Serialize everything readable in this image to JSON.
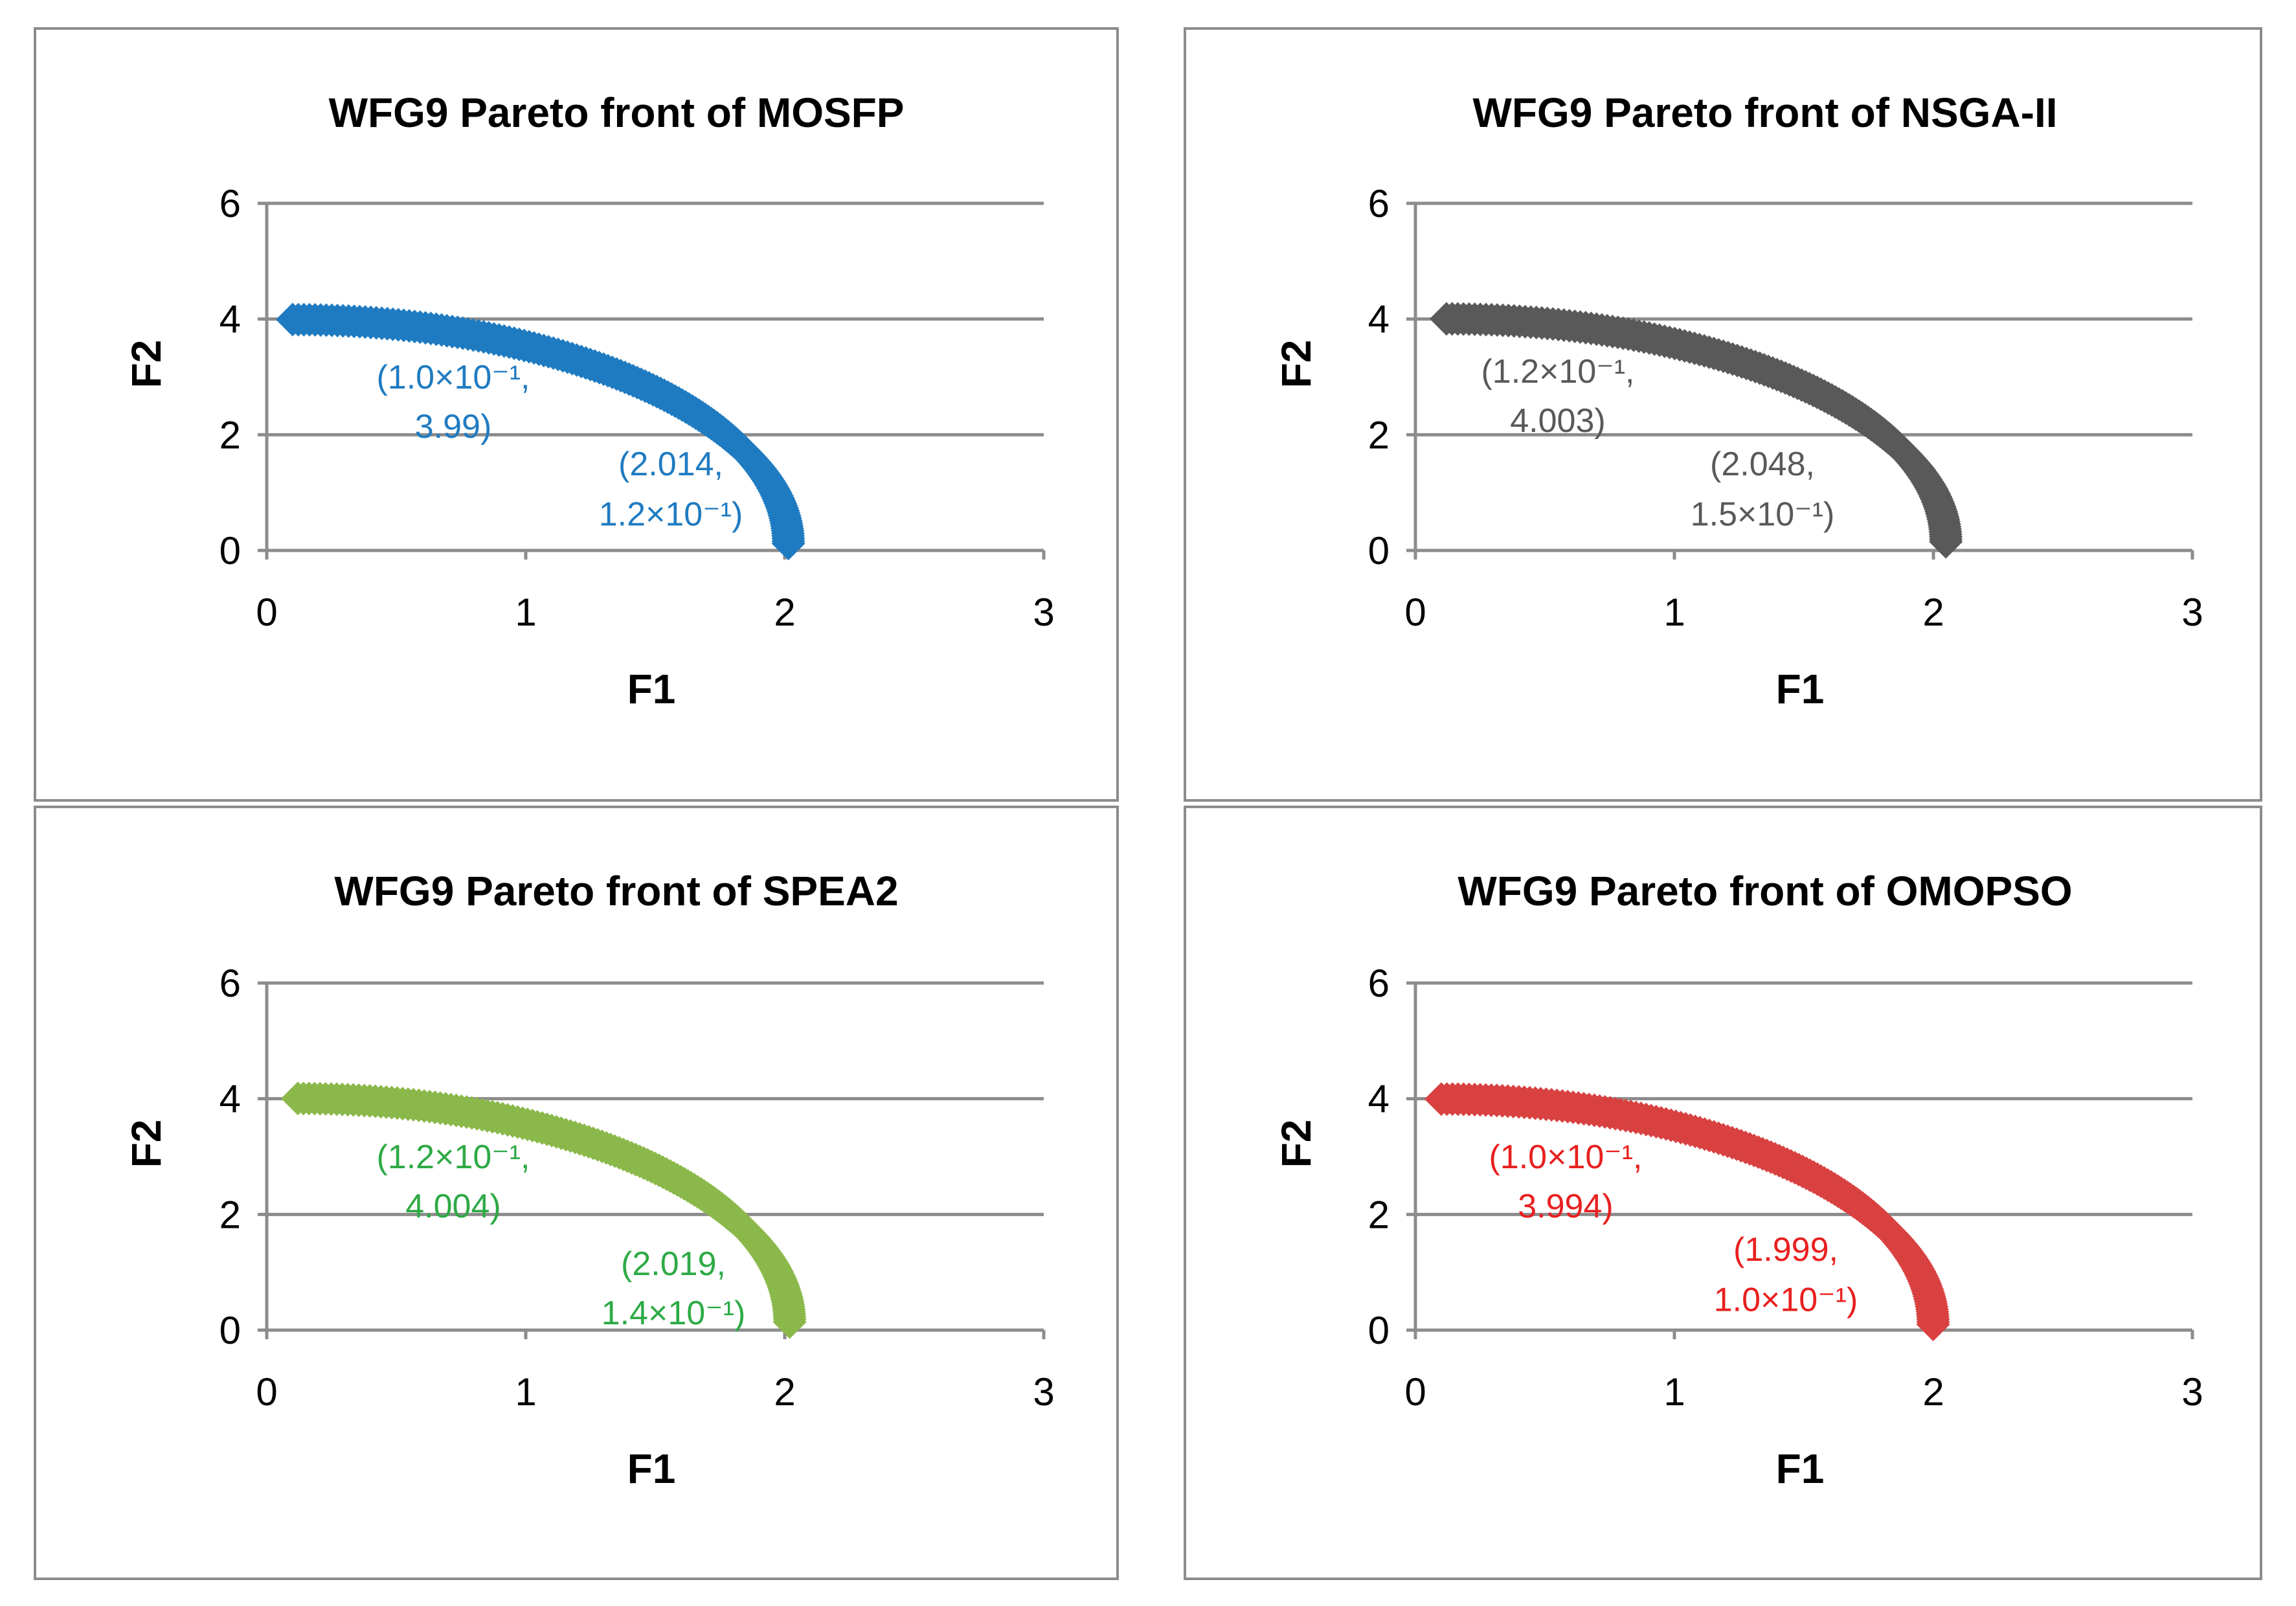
{
  "chart_data": [
    {
      "type": "scatter",
      "title": "WFG9 Pareto front of MOSFP",
      "xlabel": "F1",
      "ylabel": "F2",
      "xlim": [
        0,
        3
      ],
      "ylim": [
        0,
        6
      ],
      "xticks": [
        "0",
        "1",
        "2",
        "3"
      ],
      "yticks": [
        "0",
        "2",
        "4",
        "6"
      ],
      "grid": "horizontal",
      "color": "#1f7bc1",
      "front": {
        "f1_min": 0.1,
        "f1_max": 2.014,
        "f2_max": 3.99,
        "f2_min": 0.12
      },
      "annotations": [
        {
          "text_line1": "(1.0×10⁻¹,",
          "text_line2": "3.99)",
          "x": 0.72,
          "y_line1": 2.8,
          "y_line2": 1.95
        },
        {
          "text_line1": "(2.014,",
          "text_line2": "1.2×10⁻¹)",
          "x": 1.56,
          "y_line1": 1.3,
          "y_line2": 0.43
        }
      ]
    },
    {
      "type": "scatter",
      "title": "WFG9 Pareto front of NSGA-II",
      "xlabel": "F1",
      "ylabel": "F2",
      "xlim": [
        0,
        3
      ],
      "ylim": [
        0,
        6
      ],
      "xticks": [
        "0",
        "1",
        "2",
        "3"
      ],
      "yticks": [
        "0",
        "2",
        "4",
        "6"
      ],
      "grid": "horizontal",
      "color": "#595959",
      "front": {
        "f1_min": 0.12,
        "f1_max": 2.048,
        "f2_max": 4.003,
        "f2_min": 0.15
      },
      "annotations": [
        {
          "text_line1": "(1.2×10⁻¹,",
          "text_line2": "4.003)",
          "x": 0.55,
          "y_line1": 2.9,
          "y_line2": 2.05
        },
        {
          "text_line1": "(2.048,",
          "text_line2": "1.5×10⁻¹)",
          "x": 1.34,
          "y_line1": 1.3,
          "y_line2": 0.43
        }
      ]
    },
    {
      "type": "scatter",
      "title": "WFG9 Pareto front of SPEA2",
      "xlabel": "F1",
      "ylabel": "F2",
      "xlim": [
        0,
        3
      ],
      "ylim": [
        0,
        6
      ],
      "xticks": [
        "0",
        "1",
        "2",
        "3"
      ],
      "yticks": [
        "0",
        "2",
        "4",
        "6"
      ],
      "grid": "horizontal",
      "color": "#8bb84a",
      "front": {
        "f1_min": 0.12,
        "f1_max": 2.019,
        "f2_max": 4.004,
        "f2_min": 0.14
      },
      "annotations": [
        {
          "text_line1": "(1.2×10⁻¹,",
          "text_line2": "4.004)",
          "x": 0.72,
          "y_line1": 2.8,
          "y_line2": 1.95
        },
        {
          "text_line1": "(2.019,",
          "text_line2": "1.4×10⁻¹)",
          "x": 1.57,
          "y_line1": 0.95,
          "y_line2": 0.1
        }
      ],
      "annotation_color": "#2eaa45"
    },
    {
      "type": "scatter",
      "title": "WFG9 Pareto front of OMOPSO",
      "xlabel": "F1",
      "ylabel": "F2",
      "xlim": [
        0,
        3
      ],
      "ylim": [
        0,
        6
      ],
      "xticks": [
        "0",
        "1",
        "2",
        "3"
      ],
      "yticks": [
        "0",
        "2",
        "4",
        "6"
      ],
      "grid": "horizontal",
      "color": "#d94141",
      "front": {
        "f1_min": 0.1,
        "f1_max": 1.999,
        "f2_max": 3.994,
        "f2_min": 0.1
      },
      "annotations": [
        {
          "text_line1": "(1.0×10⁻¹,",
          "text_line2": "3.994)",
          "x": 0.58,
          "y_line1": 2.8,
          "y_line2": 1.95
        },
        {
          "text_line1": "(1.999,",
          "text_line2": "1.0×10⁻¹)",
          "x": 1.43,
          "y_line1": 1.2,
          "y_line2": 0.33
        }
      ],
      "annotation_color": "#e8201f"
    }
  ]
}
